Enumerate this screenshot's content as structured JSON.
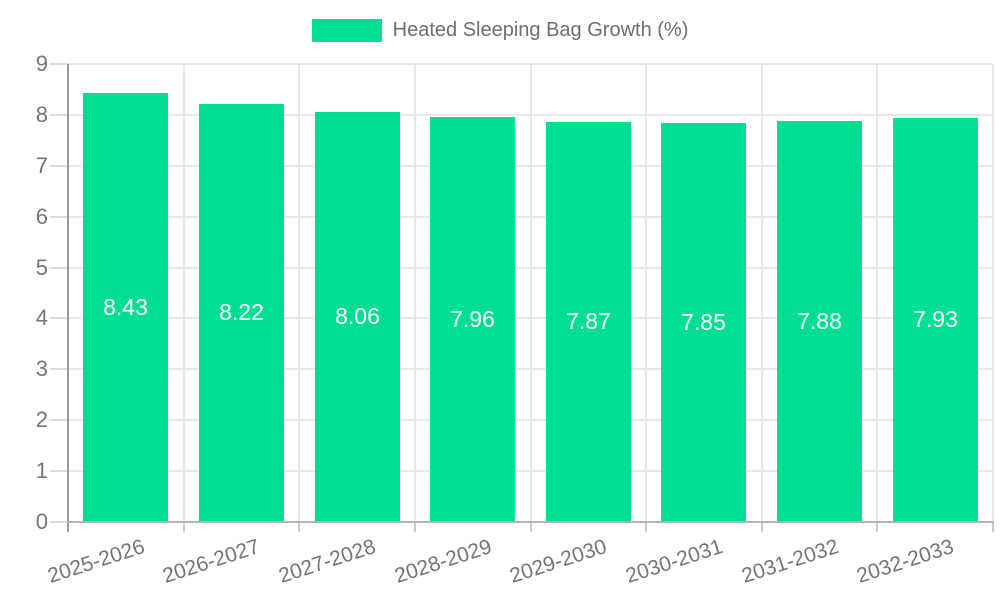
{
  "chart_data": {
    "type": "bar",
    "title": "Heated Sleeping Bag Growth (%)",
    "series_name": "Heated Sleeping Bag Growth (%)",
    "categories": [
      "2025-2026",
      "2026-2027",
      "2027-2028",
      "2028-2029",
      "2029-2030",
      "2030-2031",
      "2031-2032",
      "2032-2033"
    ],
    "values": [
      8.43,
      8.22,
      8.06,
      7.96,
      7.87,
      7.85,
      7.88,
      7.93
    ],
    "value_labels": [
      "8.43",
      "8.22",
      "8.06",
      "7.96",
      "7.87",
      "7.85",
      "7.88",
      "7.93"
    ],
    "xlabel": "",
    "ylabel": "",
    "ylim": [
      0,
      9
    ],
    "yticks": [
      0,
      1,
      2,
      3,
      4,
      5,
      6,
      7,
      8,
      9
    ],
    "grid": true,
    "legend_position": "top",
    "colors": {
      "bar": "#00de96",
      "bar_label_text": "#ffffff",
      "axis_text": "#757575",
      "legend_text": "#6e6e6e",
      "gridline": "#e8e8e8",
      "y_axis_line": "#9a9a9a",
      "x_axis_line": "#b3b3b3",
      "background": "#ffffff"
    }
  }
}
